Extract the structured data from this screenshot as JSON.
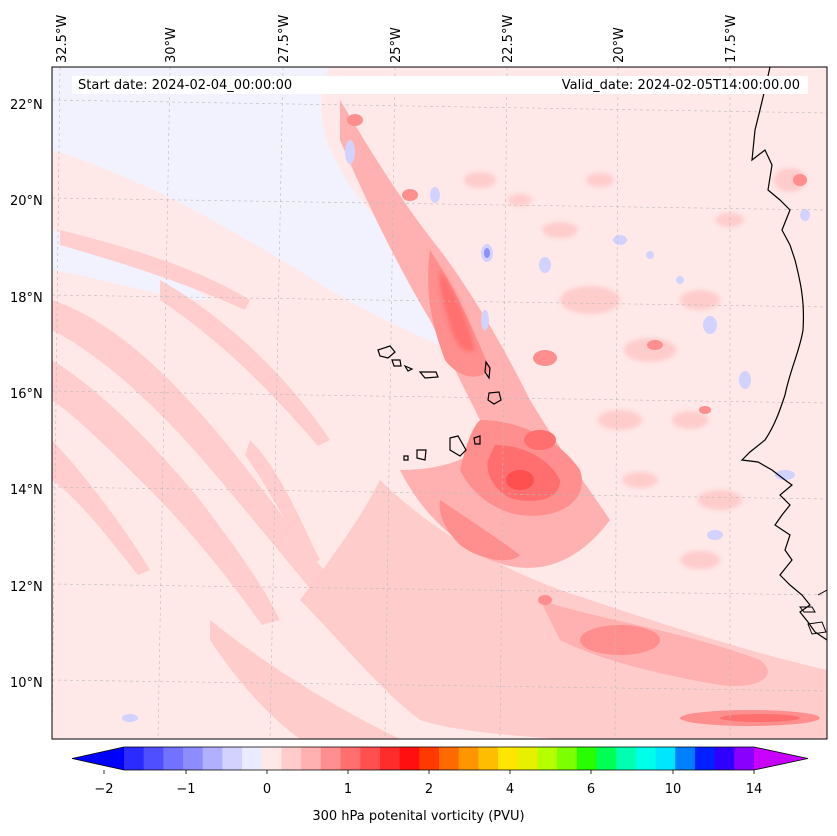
{
  "header": {
    "start_date": "Start date: 2024-02-04_00:00:00",
    "valid_date": "Valid_date: 2024-02-05T14:00:00.00"
  },
  "axes": {
    "lon_labels": [
      "32.5°W",
      "30°W",
      "27.5°W",
      "25°W",
      "22.5°W",
      "20°W",
      "17.5°W"
    ],
    "lat_labels": [
      "22°N",
      "20°N",
      "18°N",
      "16°N",
      "14°N",
      "12°N",
      "10°N"
    ]
  },
  "colorbar": {
    "label": "300 hPa potenital vorticity (PVU)",
    "ticks": [
      "−2",
      "−1",
      "0",
      "1",
      "2",
      "4",
      "6",
      "10",
      "14"
    ],
    "colors": [
      "#0000ff",
      "#2b2bff",
      "#4f4fff",
      "#7272ff",
      "#8d8dff",
      "#b0b0ff",
      "#d2d2ff",
      "#ebebff",
      "#ffe8e8",
      "#ffcccc",
      "#ffb0b0",
      "#ff8e8e",
      "#ff6f6f",
      "#ff5050",
      "#ff2c2c",
      "#ff0f0f",
      "#ff3a00",
      "#ff6a00",
      "#ff9600",
      "#ffbd00",
      "#ffe600",
      "#e6f000",
      "#b4ff00",
      "#7cff00",
      "#27ff00",
      "#00ff55",
      "#00ffb0",
      "#00ffe8",
      "#00e6ff",
      "#0080ff",
      "#0020ff",
      "#3000ff",
      "#8a00ff",
      "#c800ff"
    ]
  }
}
